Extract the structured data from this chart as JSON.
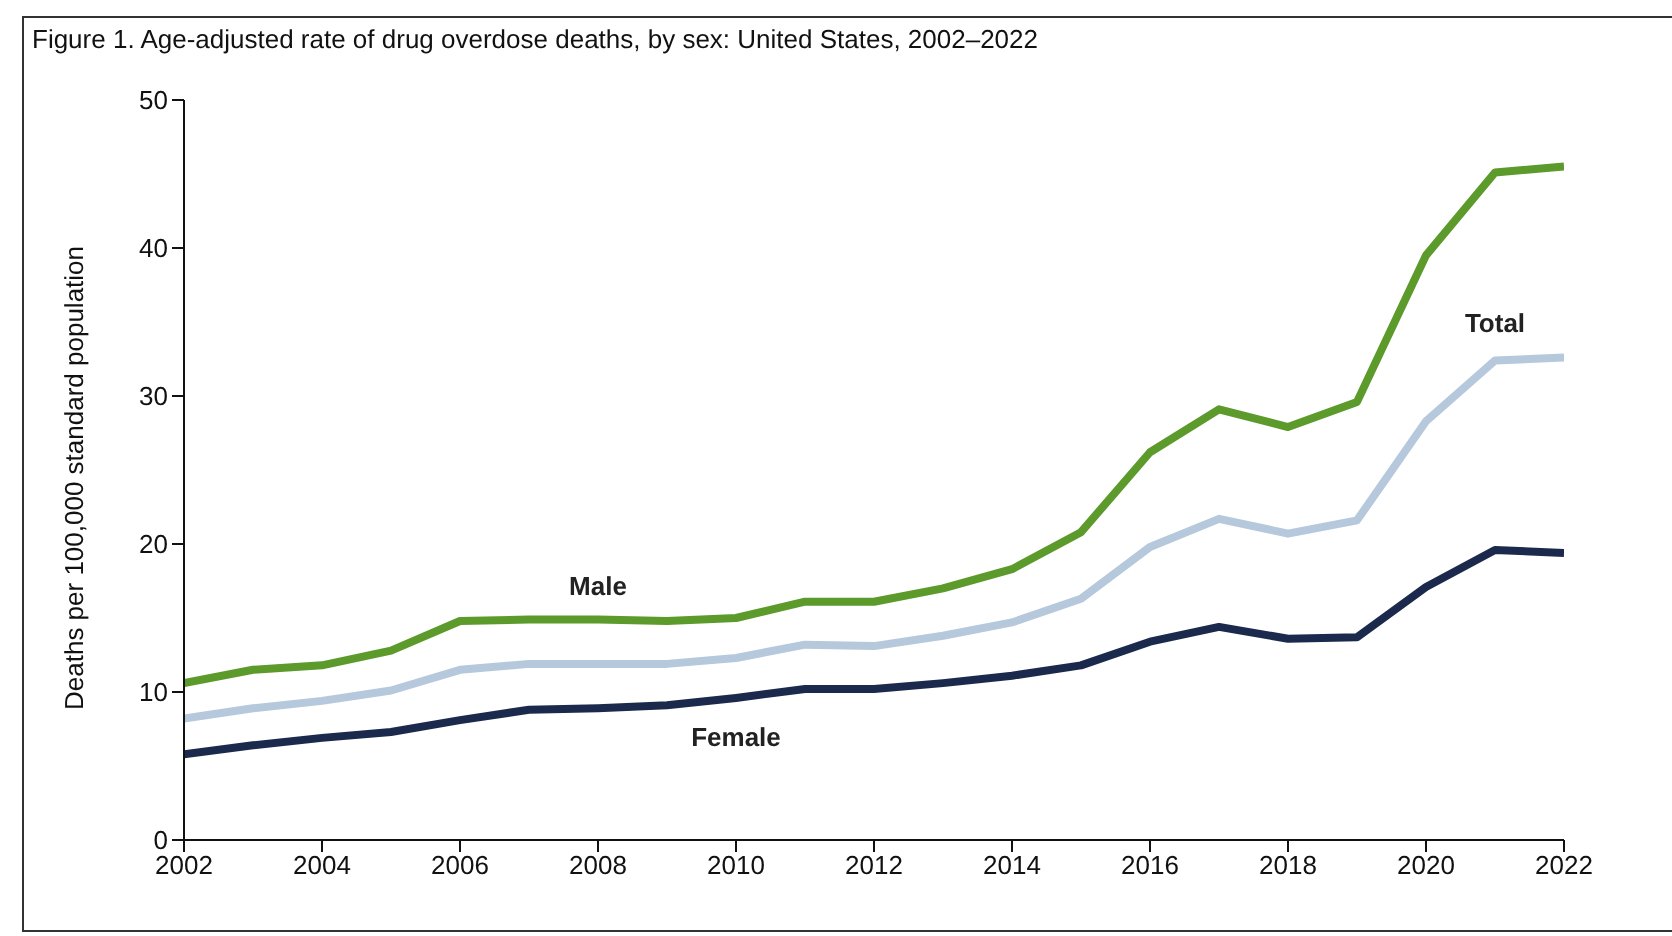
{
  "chart_data": {
    "type": "line",
    "title": "Figure 1. Age-adjusted rate of drug overdose deaths, by sex: United States, 2002–2022",
    "ylabel": "Deaths per 100,000 standard population",
    "x": [
      2002,
      2003,
      2004,
      2005,
      2006,
      2007,
      2008,
      2009,
      2010,
      2011,
      2012,
      2013,
      2014,
      2015,
      2016,
      2017,
      2018,
      2019,
      2020,
      2021,
      2022
    ],
    "xlim": [
      2002,
      2022
    ],
    "xticks": [
      2002,
      2004,
      2006,
      2008,
      2010,
      2012,
      2014,
      2016,
      2018,
      2020,
      2022
    ],
    "ylim": [
      0,
      50
    ],
    "yticks": [
      0,
      10,
      20,
      30,
      40,
      50
    ],
    "grid": false,
    "legend": false,
    "marker": "none",
    "line_style": "solid",
    "series": [
      {
        "name": "Male",
        "color": "#5b9a2b",
        "values": [
          10.6,
          11.5,
          11.8,
          12.8,
          14.8,
          14.9,
          14.9,
          14.8,
          15.0,
          16.1,
          16.1,
          17.0,
          18.3,
          20.8,
          26.2,
          29.1,
          27.9,
          29.6,
          39.5,
          45.1,
          45.5
        ]
      },
      {
        "name": "Total",
        "color": "#b5c8dc",
        "values": [
          8.2,
          8.9,
          9.4,
          10.1,
          11.5,
          11.9,
          11.9,
          11.9,
          12.3,
          13.2,
          13.1,
          13.8,
          14.7,
          16.3,
          19.8,
          21.7,
          20.7,
          21.6,
          28.3,
          32.4,
          32.6
        ]
      },
      {
        "name": "Female",
        "color": "#1b2a4c",
        "values": [
          5.8,
          6.4,
          6.9,
          7.3,
          8.1,
          8.8,
          8.9,
          9.1,
          9.6,
          10.2,
          10.2,
          10.6,
          11.1,
          11.8,
          13.4,
          14.4,
          13.6,
          13.7,
          17.1,
          19.6,
          19.4
        ]
      }
    ]
  }
}
